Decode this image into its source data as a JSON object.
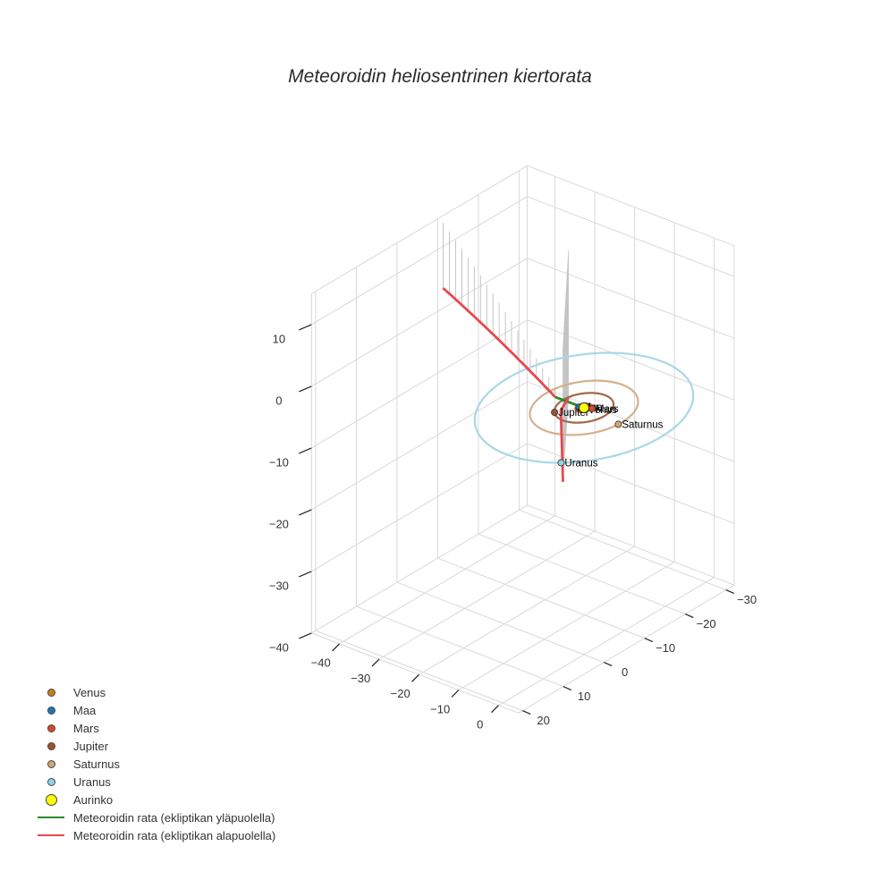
{
  "chart_data": {
    "type": "line3d",
    "title": "Meteoroidin heliosentrinen kiertorata",
    "x_ticks": [
      -30,
      -20,
      -10,
      0,
      10,
      20
    ],
    "y_ticks": [
      -40,
      -30,
      -20,
      -10,
      0
    ],
    "z_ticks": [
      10,
      0,
      -10,
      -20,
      -30,
      -40
    ],
    "planets": [
      {
        "name": "Venus",
        "color": "#c8801e",
        "orbit_radius": 0.72,
        "x": 0.4,
        "y": 0.6
      },
      {
        "name": "Maa",
        "color": "#1f77b4",
        "orbit_radius": 1.0,
        "x": 0.3,
        "y": -0.95
      },
      {
        "name": "Mars",
        "color": "#d84a24",
        "orbit_radius": 1.52,
        "x": -0.6,
        "y": 1.4
      },
      {
        "name": "Jupiter",
        "color": "#a0522d",
        "orbit_radius": 5.2,
        "x": 4.0,
        "y": -3.3
      },
      {
        "name": "Saturnus",
        "color": "#d2a679",
        "orbit_radius": 9.5,
        "x": 0.8,
        "y": 9.45
      },
      {
        "name": "Uranus",
        "color": "#8fd3e8",
        "orbit_radius": 19.2,
        "x": 16.0,
        "y": 10.6
      }
    ],
    "sun": {
      "name": "Aurinko",
      "color": "#ffff00"
    },
    "orbit_colors": {
      "Venus": "#c8801e",
      "Maa": "#6b8fc0",
      "Mars": "#d86a40",
      "Jupiter": "#a0684a",
      "Saturnus": "#d4b08c",
      "Uranus": "#a9d8e6"
    },
    "series": [
      {
        "name": "Meteoroidin rata (ekliptikan yläpuolella)",
        "color": "#2a8a2a",
        "points": [
          [
            0,
            0,
            0
          ],
          [
            0.8,
            -1.6,
            0.5
          ],
          [
            1.6,
            -3.2,
            1.0
          ],
          [
            2.4,
            -4.8,
            1.5
          ]
        ]
      },
      {
        "name": "Meteoroidin rata (ekliptikan alapuolella)",
        "color": "#e8474c",
        "points": [
          [
            -4,
            -8,
            -2
          ],
          [
            -8,
            -14,
            -7
          ],
          [
            -16,
            -22,
            -16
          ],
          [
            -24,
            -30,
            -25
          ],
          [
            -32,
            -38,
            -34
          ]
        ]
      }
    ],
    "legend_position": "bottom-left"
  }
}
